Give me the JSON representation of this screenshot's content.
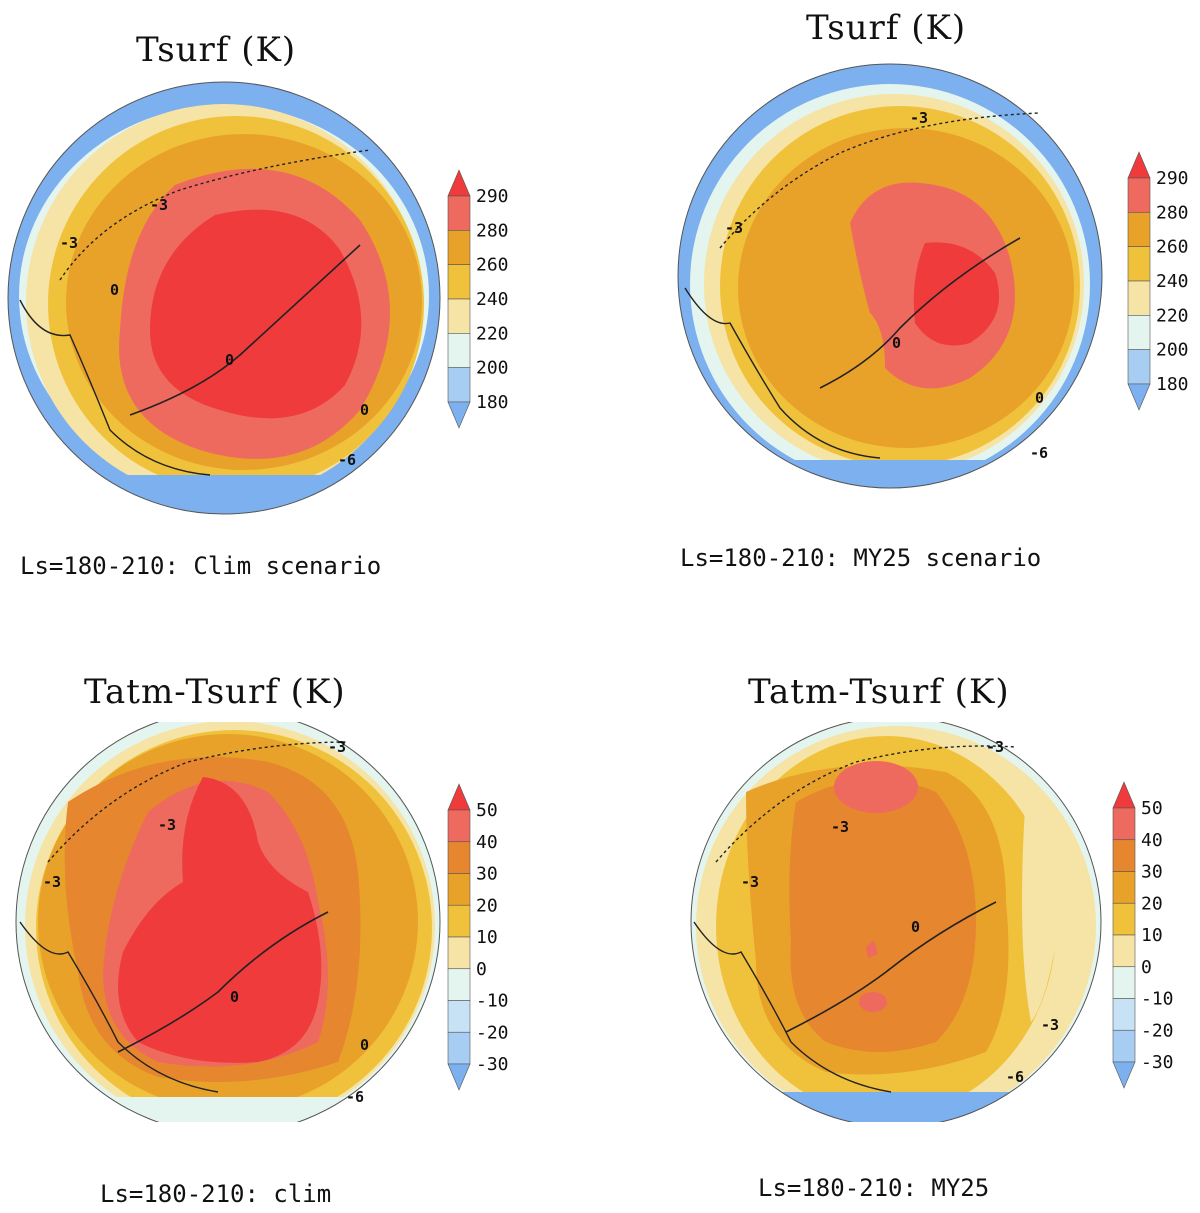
{
  "chart_data": [
    {
      "type": "heatmap",
      "title": "Tsurf (K)",
      "caption": "Ls=180-210: Clim scenario",
      "colorbar": {
        "levels": [
          "290",
          "280",
          "260",
          "240",
          "220",
          "200",
          "180"
        ],
        "colors": [
          "#ef3b3b",
          "#ee6a5e",
          "#e8a22a",
          "#f0c23c",
          "#f6e3a6",
          "#e3f5ee",
          "#a8cdf3",
          "#7cb0ee"
        ]
      },
      "contours": [
        {
          "label": "0",
          "kind": "solid"
        },
        {
          "label": "-3",
          "kind": "dotted"
        },
        {
          "label": "-6",
          "kind": "dotted"
        }
      ]
    },
    {
      "type": "heatmap",
      "title": "Tsurf (K)",
      "caption": "Ls=180-210: MY25 scenario",
      "colorbar": {
        "levels": [
          "290",
          "280",
          "260",
          "240",
          "220",
          "200",
          "180"
        ],
        "colors": [
          "#ef3b3b",
          "#ee6a5e",
          "#e8a22a",
          "#f0c23c",
          "#f6e3a6",
          "#e3f5ee",
          "#a8cdf3",
          "#7cb0ee"
        ]
      },
      "contours": [
        {
          "label": "0",
          "kind": "solid"
        },
        {
          "label": "-3",
          "kind": "dotted"
        },
        {
          "label": "-6",
          "kind": "dotted"
        }
      ]
    },
    {
      "type": "heatmap",
      "title": "Tatm-Tsurf (K)",
      "caption": "Ls=180-210: clim",
      "colorbar": {
        "levels": [
          "50",
          "40",
          "30",
          "20",
          "10",
          "0",
          "-10",
          "-20",
          "-30"
        ],
        "colors": [
          "#ef3b3b",
          "#ee6a5e",
          "#e6862e",
          "#e8a22a",
          "#f0c23c",
          "#f6e3a6",
          "#e3f5ee",
          "#c8e2f5",
          "#a8cdf3",
          "#7cb0ee"
        ]
      },
      "contours": [
        {
          "label": "0",
          "kind": "solid"
        },
        {
          "label": "-3",
          "kind": "dotted"
        },
        {
          "label": "-6",
          "kind": "dotted"
        }
      ]
    },
    {
      "type": "heatmap",
      "title": "Tatm-Tsurf (K)",
      "caption": "Ls=180-210: MY25",
      "colorbar": {
        "levels": [
          "50",
          "40",
          "30",
          "20",
          "10",
          "0",
          "-10",
          "-20",
          "-30"
        ],
        "colors": [
          "#ef3b3b",
          "#ee6a5e",
          "#e6862e",
          "#e8a22a",
          "#f0c23c",
          "#f6e3a6",
          "#e3f5ee",
          "#c8e2f5",
          "#a8cdf3",
          "#7cb0ee"
        ]
      },
      "contours": [
        {
          "label": "0",
          "kind": "solid"
        },
        {
          "label": "-3",
          "kind": "dotted"
        },
        {
          "label": "-6",
          "kind": "dotted"
        }
      ]
    }
  ]
}
